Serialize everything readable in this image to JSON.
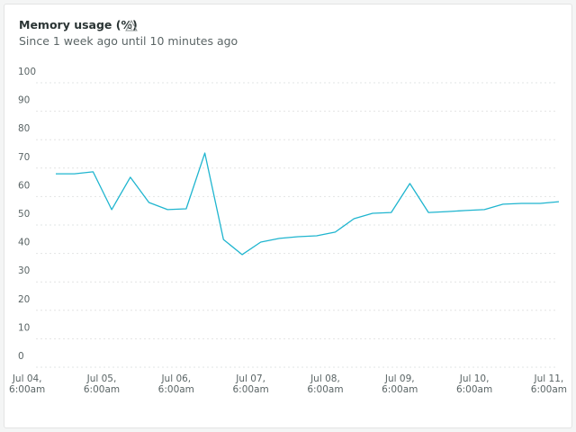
{
  "chart_data": {
    "type": "line",
    "title": "Memory usage (%)",
    "subtitle": "Since 1 week ago until 10 minutes ago",
    "x": [
      "Jul 04 16:40",
      "Jul 04 22:40",
      "Jul 05 04:40",
      "Jul 05 10:40",
      "Jul 05 16:40",
      "Jul 05 22:40",
      "Jul 06 04:40",
      "Jul 06 10:40",
      "Jul 06 16:40",
      "Jul 06 22:40",
      "Jul 07 04:40",
      "Jul 07 10:40",
      "Jul 07 16:40",
      "Jul 07 22:40",
      "Jul 08 04:40",
      "Jul 08 10:40",
      "Jul 08 16:40",
      "Jul 08 22:40",
      "Jul 09 04:40",
      "Jul 09 10:40",
      "Jul 09 16:40",
      "Jul 09 22:40",
      "Jul 10 04:40",
      "Jul 10 10:40",
      "Jul 10 16:40",
      "Jul 10 22:40",
      "Jul 11 04:40",
      "Jul 11 10:40"
    ],
    "series": [
      {
        "name": "Memory usage",
        "color": "#1fb5cf",
        "values": [
          68.0,
          68.0,
          68.7,
          55.4,
          66.8,
          57.9,
          55.4,
          55.7,
          75.3,
          44.9,
          39.6,
          44.0,
          45.3,
          45.9,
          46.2,
          47.5,
          52.2,
          54.1,
          54.4,
          64.6,
          54.4,
          54.7,
          55.1,
          55.4,
          57.3,
          57.6,
          57.6,
          58.2
        ]
      }
    ],
    "xlim": [
      "Jul 04 04:30",
      "Jul 11 10:40"
    ],
    "xticks": [
      {
        "value": "Jul 04 06:00",
        "label": "Jul 04, 6:00am"
      },
      {
        "value": "Jul 05 06:00",
        "label": "Jul 05, 6:00am"
      },
      {
        "value": "Jul 06 06:00",
        "label": "Jul 06, 6:00am"
      },
      {
        "value": "Jul 07 06:00",
        "label": "Jul 07, 6:00am"
      },
      {
        "value": "Jul 08 06:00",
        "label": "Jul 08, 6:00am"
      },
      {
        "value": "Jul 09 06:00",
        "label": "Jul 09, 6:00am"
      },
      {
        "value": "Jul 10 06:00",
        "label": "Jul 10, 6:00am"
      },
      {
        "value": "Jul 11 06:00",
        "label": "Jul 11, 6:00am"
      }
    ],
    "ylim": [
      0,
      100
    ],
    "yticks": [
      0,
      10,
      20,
      30,
      40,
      50,
      60,
      70,
      80,
      90,
      100
    ],
    "grid": true
  }
}
